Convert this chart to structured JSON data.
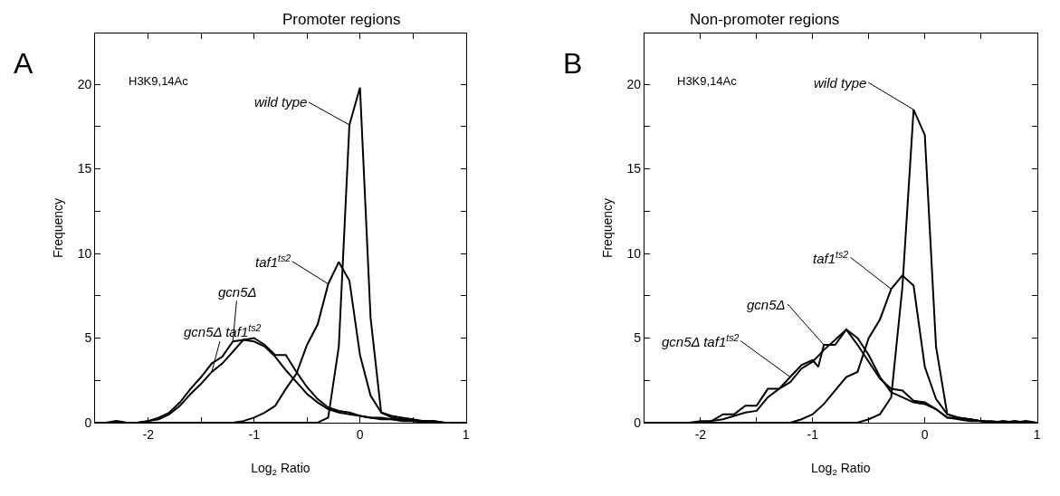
{
  "chart_data": [
    {
      "type": "line",
      "title": "Promoter regions",
      "xlabel": "Log$_{2}$ Ratio",
      "ylabel": "Frequency",
      "xlim": [
        -2.5,
        1
      ],
      "xticks": [
        -2,
        {
          "value": -1.5,
          "label": null
        },
        -1,
        {
          "value": -0.5,
          "label": null
        },
        0,
        {
          "value": 0.5,
          "label": null
        },
        1
      ],
      "ylim": [
        0,
        23
      ],
      "yticks": [
        0,
        {
          "value": 2.5,
          "label": null
        },
        5,
        {
          "value": 7.5,
          "label": null
        },
        10,
        {
          "value": 12.5,
          "label": null
        },
        15,
        {
          "value": 17.5,
          "label": null
        },
        20
      ],
      "marker": "none",
      "line_style": "solid",
      "series": [
        {
          "color": "#000000",
          "x": [
            -2.5,
            -0.4,
            -0.3,
            -0.2,
            -0.1,
            0.0,
            0.1,
            0.2,
            0.3,
            0.4,
            0.5,
            0.6,
            1.0
          ],
          "values": [
            0,
            0,
            0.3,
            4.5,
            17.6,
            19.8,
            6.2,
            0.6,
            0.3,
            0.2,
            0.1,
            0,
            0
          ]
        },
        {
          "color": "#000000",
          "x": [
            -2.5,
            -1.2,
            -1.1,
            -1.0,
            -0.9,
            -0.8,
            -0.7,
            -0.6,
            -0.5,
            -0.4,
            -0.3,
            -0.2,
            -0.1,
            0.0,
            0.1,
            0.2,
            0.3,
            0.4,
            0.5,
            0.6,
            0.7,
            0.8,
            1.0
          ],
          "values": [
            0,
            0,
            0.1,
            0.3,
            0.6,
            1.0,
            2.0,
            2.9,
            4.6,
            5.8,
            8.2,
            9.5,
            8.4,
            4.0,
            1.6,
            0.6,
            0.4,
            0.3,
            0.2,
            0.1,
            0.1,
            0,
            0
          ]
        },
        {
          "color": "#000000",
          "x": [
            -2.5,
            -2.4,
            -2.3,
            -2.2,
            -2.1,
            -2.0,
            -1.9,
            -1.8,
            -1.7,
            -1.6,
            -1.5,
            -1.4,
            -1.3,
            -1.2,
            -1.1,
            -1.0,
            -0.9,
            -0.8,
            -0.7,
            -0.6,
            -0.5,
            -0.4,
            -0.3,
            -0.2,
            -0.1,
            0.0,
            0.1,
            0.2,
            0.3,
            0.4,
            0.5,
            0.6,
            0.7,
            0.8,
            1.0
          ],
          "values": [
            0,
            0,
            0.1,
            0,
            0,
            0.1,
            0.3,
            0.6,
            1.2,
            2.0,
            2.7,
            3.5,
            3.9,
            4.8,
            4.9,
            5.0,
            4.6,
            4.0,
            4.0,
            3.0,
            2.1,
            1.4,
            0.9,
            0.7,
            0.6,
            0.4,
            0.3,
            0.3,
            0.2,
            0.2,
            0.1,
            0.1,
            0.1,
            0,
            0
          ]
        },
        {
          "color": "#000000",
          "x": [
            -2.5,
            -2.1,
            -2.0,
            -1.9,
            -1.8,
            -1.7,
            -1.6,
            -1.5,
            -1.4,
            -1.3,
            -1.2,
            -1.1,
            -1.0,
            -0.9,
            -0.8,
            -0.7,
            -0.6,
            -0.5,
            -0.4,
            -0.3,
            -0.2,
            -0.1,
            0.0,
            0.1,
            0.2,
            0.3,
            0.4,
            0.5,
            0.6,
            0.7,
            1.0
          ],
          "values": [
            0,
            0,
            0.1,
            0.2,
            0.5,
            1.0,
            1.7,
            2.3,
            3.0,
            3.5,
            4.2,
            4.9,
            4.8,
            4.5,
            3.9,
            3.1,
            2.4,
            1.7,
            1.2,
            0.8,
            0.6,
            0.5,
            0.4,
            0.3,
            0.2,
            0.2,
            0.1,
            0.1,
            0.1,
            0,
            0
          ]
        }
      ],
      "annotations": [
        "A",
        "H3K9,14Ac",
        {
          "text": "wild type",
          "x": -0.1,
          "y": 17.6
        },
        {
          "text": "taf1$^{ts2}$",
          "x": -0.3,
          "y": 8.2
        },
        {
          "text": "gcn5Δ",
          "x": -1.2,
          "y": 4.8
        },
        {
          "text": "gcn5Δ taf1$^{ts2}$",
          "x": -1.4,
          "y": 3.0
        }
      ]
    },
    {
      "type": "line",
      "title": "Non-promoter regions",
      "xlabel": "Log$_{2}$ Ratio",
      "ylabel": "Frequency",
      "xlim": [
        -2.5,
        1
      ],
      "xticks": [
        -2,
        {
          "value": -1.5,
          "label": null
        },
        -1,
        {
          "value": -0.5,
          "label": null
        },
        0,
        {
          "value": 0.5,
          "label": null
        },
        1
      ],
      "ylim": [
        0,
        23
      ],
      "yticks": [
        0,
        {
          "value": 2.5,
          "label": null
        },
        5,
        {
          "value": 7.5,
          "label": null
        },
        10,
        {
          "value": 12.5,
          "label": null
        },
        15,
        {
          "value": 17.5,
          "label": null
        },
        20
      ],
      "marker": "none",
      "line_style": "solid",
      "series": [
        {
          "color": "#000000",
          "x": [
            -2.5,
            -0.6,
            -0.5,
            -0.4,
            -0.3,
            -0.2,
            -0.1,
            0.0,
            0.1,
            0.2,
            0.3,
            0.4,
            0.5,
            0.6,
            1.0
          ],
          "values": [
            0,
            0,
            0.2,
            0.5,
            1.5,
            8.0,
            18.5,
            17.0,
            4.5,
            0.5,
            0.3,
            0.2,
            0.1,
            0,
            0
          ]
        },
        {
          "color": "#000000",
          "x": [
            -2.5,
            -1.2,
            -1.1,
            -1.0,
            -0.9,
            -0.8,
            -0.7,
            -0.6,
            -0.5,
            -0.4,
            -0.3,
            -0.2,
            -0.1,
            0.0,
            0.1,
            0.2,
            0.3,
            0.4,
            0.5,
            0.6,
            1.0
          ],
          "values": [
            0,
            0,
            0.2,
            0.5,
            1.1,
            1.9,
            2.7,
            3.0,
            5.0,
            6.1,
            7.9,
            8.7,
            8.1,
            3.3,
            1.4,
            0.5,
            0.3,
            0.2,
            0.1,
            0,
            0
          ]
        },
        {
          "color": "#000000",
          "x": [
            -2.5,
            -2.1,
            -2.0,
            -1.9,
            -1.8,
            -1.7,
            -1.6,
            -1.5,
            -1.4,
            -1.3,
            -1.2,
            -1.1,
            -1.0,
            -0.95,
            -0.9,
            -0.8,
            -0.7,
            -0.6,
            -0.5,
            -0.4,
            -0.3,
            -0.2,
            -0.1,
            0.0,
            0.1,
            0.2,
            0.3,
            0.4,
            0.5,
            0.6,
            0.7,
            0.8,
            0.9,
            1.0
          ],
          "values": [
            0,
            0,
            0.1,
            0.1,
            0.5,
            0.5,
            1.0,
            1.0,
            2.0,
            2.0,
            2.7,
            3.4,
            3.7,
            3.3,
            4.6,
            4.6,
            5.5,
            4.6,
            3.6,
            2.6,
            2.0,
            1.9,
            1.3,
            1.2,
            0.8,
            0.3,
            0.3,
            0.2,
            0.1,
            0.1,
            0,
            0.1,
            0,
            0
          ]
        },
        {
          "color": "#000000",
          "x": [
            -2.5,
            -2.0,
            -1.9,
            -1.8,
            -1.7,
            -1.6,
            -1.5,
            -1.4,
            -1.3,
            -1.2,
            -1.1,
            -1.0,
            -0.9,
            -0.8,
            -0.7,
            -0.6,
            -0.5,
            -0.4,
            -0.3,
            -0.2,
            -0.1,
            0.0,
            0.1,
            0.2,
            0.3,
            0.4,
            0.5,
            0.6,
            0.7,
            0.8,
            0.9,
            1.0
          ],
          "values": [
            0,
            0,
            0.1,
            0.2,
            0.4,
            0.6,
            0.7,
            1.5,
            2.0,
            2.4,
            3.2,
            3.6,
            4.3,
            4.9,
            5.5,
            5.0,
            4.0,
            2.7,
            1.8,
            1.5,
            1.2,
            1.1,
            0.8,
            0.3,
            0.2,
            0.1,
            0.1,
            0,
            0.1,
            0,
            0.1,
            0
          ]
        }
      ],
      "annotations": [
        "B",
        "H3K9,14Ac",
        {
          "text": "wild type",
          "x": -0.1,
          "y": 18.5
        },
        {
          "text": "taf1$^{ts2}$",
          "x": -0.3,
          "y": 7.9
        },
        {
          "text": "gcn5Δ",
          "x": -0.9,
          "y": 4.6
        },
        {
          "text": "gcn5Δ taf1$^{ts2}$",
          "x": -1.2,
          "y": 2.7
        }
      ]
    }
  ]
}
